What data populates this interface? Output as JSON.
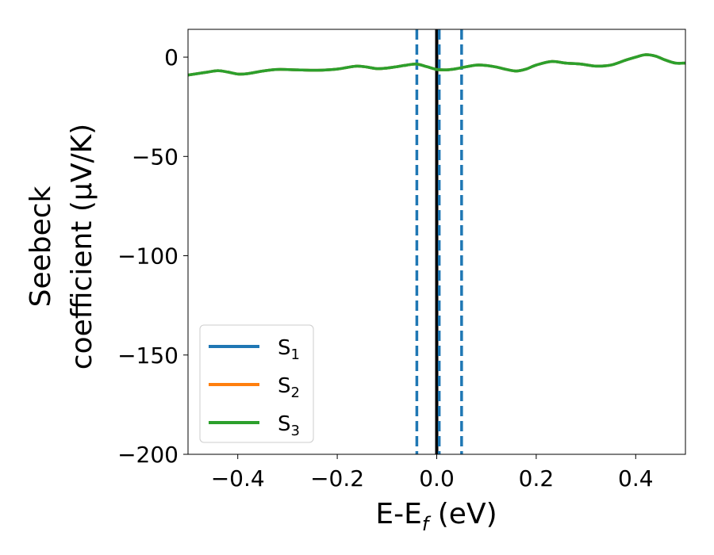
{
  "chart_data": {
    "type": "line",
    "title": "",
    "xlabel": {
      "main": "E-E",
      "sub": "f",
      "suffix": " (eV)"
    },
    "ylabel": {
      "line1": "Seebeck",
      "line2": "coefficient  (μV/K)"
    },
    "xlim": [
      -0.5,
      0.5
    ],
    "ylim": [
      -200,
      14
    ],
    "xticks": [
      -0.4,
      -0.2,
      0.0,
      0.2,
      0.4
    ],
    "xtick_labels": [
      "−0.4",
      "−0.2",
      "0.0",
      "0.2",
      "0.4"
    ],
    "yticks": [
      0,
      -50,
      -100,
      -150,
      -200
    ],
    "ytick_labels": [
      "0",
      "−50",
      "−100",
      "−150",
      "−200"
    ],
    "grid": false,
    "legend_position": "bottom-left",
    "x": [
      -0.5,
      -0.46,
      -0.44,
      -0.42,
      -0.4,
      -0.38,
      -0.35,
      -0.32,
      -0.28,
      -0.24,
      -0.2,
      -0.18,
      -0.16,
      -0.14,
      -0.12,
      -0.1,
      -0.08,
      -0.06,
      -0.04,
      -0.02,
      0.0,
      0.02,
      0.04,
      0.06,
      0.08,
      0.1,
      0.12,
      0.14,
      0.16,
      0.18,
      0.2,
      0.23,
      0.26,
      0.29,
      0.32,
      0.35,
      0.38,
      0.4,
      0.42,
      0.44,
      0.46,
      0.48,
      0.5
    ],
    "series": [
      {
        "name_main": "S",
        "name_sub": "1",
        "color": "#1f77b4",
        "values": [
          -9,
          -7.5,
          -6.8,
          -7.5,
          -8.5,
          -8.3,
          -7,
          -6.2,
          -6.4,
          -6.6,
          -6,
          -5.2,
          -4.5,
          -5,
          -5.8,
          -5.5,
          -4.8,
          -4,
          -3.5,
          -4.8,
          -6.2,
          -6.4,
          -5.8,
          -4.8,
          -4,
          -4.2,
          -5,
          -6.2,
          -7,
          -6,
          -4,
          -2.2,
          -3,
          -3.5,
          -4.5,
          -4,
          -1.5,
          0,
          1.2,
          0.5,
          -1.5,
          -3,
          -3
        ]
      },
      {
        "name_main": "S",
        "name_sub": "2",
        "color": "#ff7f0e",
        "values": [
          -9,
          -7.5,
          -6.8,
          -7.5,
          -8.5,
          -8.3,
          -7,
          -6.2,
          -6.4,
          -6.6,
          -6,
          -5.2,
          -4.5,
          -5,
          -5.8,
          -5.5,
          -4.8,
          -4,
          -3.5,
          -4.8,
          -6.2,
          -6.4,
          -5.8,
          -4.8,
          -4,
          -4.2,
          -5,
          -6.2,
          -7,
          -6,
          -4,
          -2.2,
          -3,
          -3.5,
          -4.5,
          -4,
          -1.5,
          0,
          1.2,
          0.5,
          -1.5,
          -3,
          -3
        ]
      },
      {
        "name_main": "S",
        "name_sub": "3",
        "color": "#2ca02c",
        "values": [
          -9,
          -7.5,
          -6.8,
          -7.5,
          -8.5,
          -8.3,
          -7,
          -6.2,
          -6.4,
          -6.6,
          -6,
          -5.2,
          -4.5,
          -5,
          -5.8,
          -5.5,
          -4.8,
          -4,
          -3.5,
          -4.8,
          -6.2,
          -6.4,
          -5.8,
          -4.8,
          -4,
          -4.2,
          -5,
          -6.2,
          -7,
          -6,
          -4,
          -2.2,
          -3,
          -3.5,
          -4.5,
          -4,
          -1.5,
          0,
          1.2,
          0.5,
          -1.5,
          -3,
          -3
        ]
      }
    ],
    "vlines": [
      {
        "x": 0.0,
        "color": "#000000",
        "style": "solid"
      },
      {
        "x": -0.04,
        "color": "#1f77b4",
        "style": "dashed"
      },
      {
        "x": 0.005,
        "color": "#1f77b4",
        "style": "dashed"
      },
      {
        "x": 0.05,
        "color": "#1f77b4",
        "style": "dashed"
      }
    ]
  }
}
